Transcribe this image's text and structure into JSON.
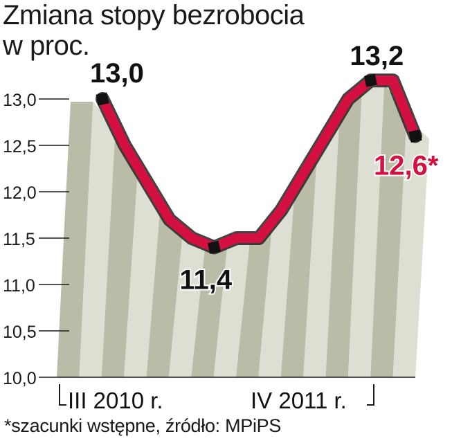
{
  "title_line1": "Zmiana stopy bezrobocia",
  "title_line2": "w proc.",
  "footnote": "*szacunki wstępne, źródło: MPiPS",
  "colors": {
    "line": "#d3103f",
    "stripe_dark": "#aeb098",
    "stripe_light": "#dcdfd2",
    "marker": "#111111"
  },
  "chart_data": {
    "type": "line",
    "title": "Zmiana stopy bezrobocia w proc.",
    "x": [
      "III 2010 r.",
      "",
      "",
      "",
      "",
      "",
      "",
      "",
      "",
      "",
      "",
      "",
      "",
      "IV 2011 r.",
      ""
    ],
    "series": [
      {
        "values": [
          13.0,
          12.5,
          12.1,
          11.7,
          11.5,
          11.4,
          11.5,
          11.5,
          11.8,
          12.2,
          12.6,
          13.0,
          13.2,
          13.2,
          12.6
        ]
      }
    ],
    "ylim": [
      10.0,
      13.0
    ],
    "yticks": [
      "13,0",
      "12,5",
      "12,0",
      "11,5",
      "11,0",
      "10,5",
      "10,0"
    ],
    "xtick_labels": [
      "III 2010 r.",
      "IV 2011 r."
    ],
    "data_labels": [
      {
        "index": 0,
        "text": "13,0"
      },
      {
        "index": 5,
        "text": "11,4"
      },
      {
        "index": 12,
        "text": "13,2"
      },
      {
        "index": 14,
        "text": "12,6*"
      }
    ],
    "grid": true
  }
}
